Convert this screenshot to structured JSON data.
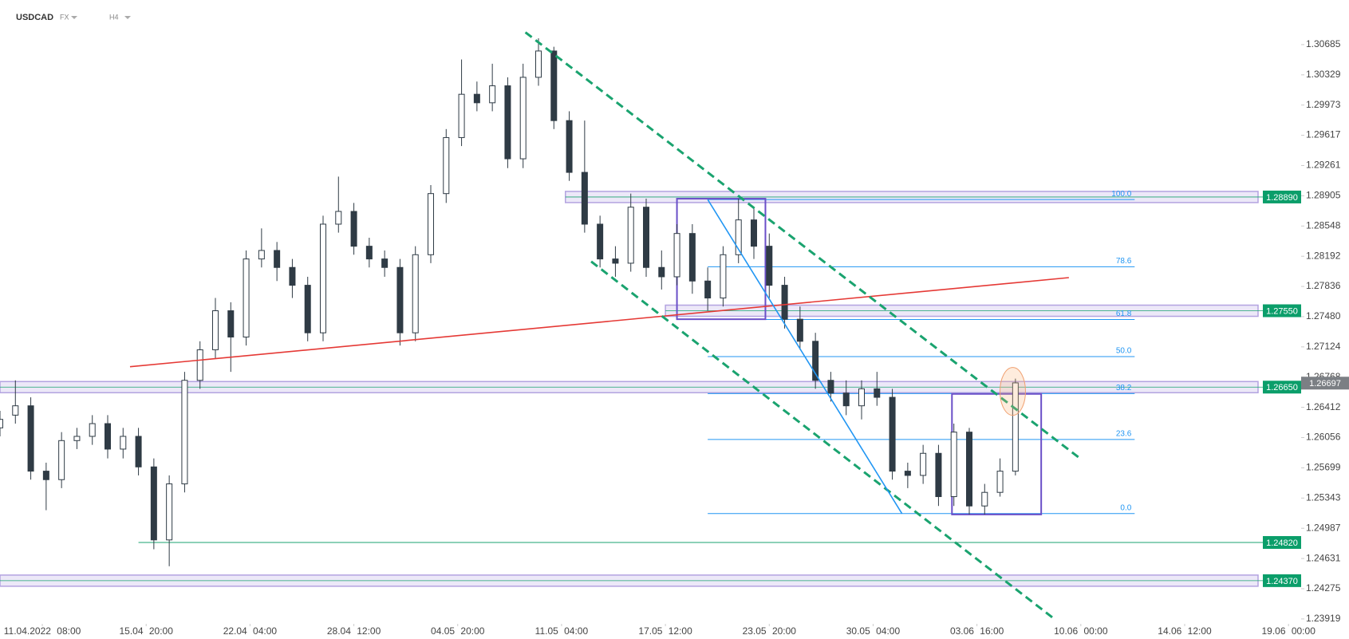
{
  "chart_data": {
    "type": "candlestick",
    "title": "USDCAD",
    "market": "FX",
    "timeframe": "H4",
    "x": [
      0,
      4,
      8,
      12,
      16,
      20,
      24,
      28,
      32,
      36,
      40,
      44,
      48,
      52,
      56,
      60,
      64,
      68,
      72,
      76,
      80,
      84,
      88,
      92,
      96,
      100,
      104,
      108,
      112,
      116,
      120,
      124,
      128,
      132,
      136,
      140,
      144,
      148,
      152,
      156,
      160,
      164,
      168,
      172,
      176,
      180,
      184,
      188,
      192,
      196,
      200,
      204,
      208,
      212,
      216,
      220,
      224,
      228,
      232,
      236,
      240,
      244,
      248,
      252,
      256,
      260,
      264
    ],
    "open": [
      1.2617,
      1.2632,
      1.2643,
      1.2566,
      1.2556,
      1.2602,
      1.2607,
      1.2622,
      1.2592,
      1.2607,
      1.2571,
      1.2485,
      1.2551,
      1.2673,
      1.2709,
      1.2755,
      1.2724,
      1.2816,
      1.2826,
      1.2806,
      1.2785,
      1.2729,
      1.2857,
      1.2872,
      1.2831,
      1.2816,
      1.2806,
      1.2729,
      1.2821,
      1.2893,
      1.2959,
      1.301,
      1.3,
      1.302,
      1.2934,
      1.303,
      1.3061,
      1.2979,
      1.2918,
      1.2857,
      1.2816,
      1.2811,
      1.2877,
      1.2806,
      1.2795,
      1.2846,
      1.279,
      1.277,
      1.2821,
      1.2862,
      1.2831,
      1.2785,
      1.2745,
      1.2719,
      1.2673,
      1.2658,
      1.2643,
      1.2663,
      1.2653,
      1.2566,
      1.2561,
      1.2587,
      1.2536,
      1.2612,
      1.2525,
      1.2541,
      1.2566
    ],
    "high": [
      1.2637,
      1.2673,
      1.2653,
      1.2576,
      1.2612,
      1.2617,
      1.2632,
      1.2632,
      1.2617,
      1.2617,
      1.2581,
      1.2561,
      1.2683,
      1.2719,
      1.277,
      1.2765,
      1.2826,
      1.2852,
      1.2836,
      1.2816,
      1.2795,
      1.2867,
      1.2913,
      1.2882,
      1.2841,
      1.2826,
      1.2816,
      1.2831,
      1.2903,
      1.2969,
      1.3051,
      1.3025,
      1.3046,
      1.303,
      1.3046,
      1.3076,
      1.3066,
      1.299,
      1.2979,
      1.2867,
      1.2831,
      1.2893,
      1.2887,
      1.2826,
      1.2857,
      1.2857,
      1.2806,
      1.2831,
      1.2887,
      1.2877,
      1.2846,
      1.2795,
      1.276,
      1.2729,
      1.2683,
      1.2673,
      1.2673,
      1.2683,
      1.2663,
      1.2576,
      1.2597,
      1.2597,
      1.2622,
      1.2617,
      1.2551,
      1.2581,
      1.2675
    ],
    "low": [
      1.2607,
      1.2622,
      1.2556,
      1.252,
      1.2546,
      1.2592,
      1.2597,
      1.2581,
      1.2581,
      1.2561,
      1.2474,
      1.2454,
      1.2541,
      1.2663,
      1.2699,
      1.2683,
      1.2714,
      1.2806,
      1.279,
      1.277,
      1.2719,
      1.2719,
      1.2847,
      1.2821,
      1.2806,
      1.2795,
      1.2714,
      1.2719,
      1.2811,
      1.2882,
      1.2949,
      1.299,
      1.299,
      1.2923,
      1.2923,
      1.302,
      1.2969,
      1.2908,
      1.2847,
      1.2806,
      1.2795,
      1.2801,
      1.2795,
      1.278,
      1.2785,
      1.2775,
      1.2755,
      1.276,
      1.2811,
      1.2816,
      1.277,
      1.2734,
      1.2709,
      1.2663,
      1.2648,
      1.2632,
      1.2627,
      1.2643,
      1.2556,
      1.2546,
      1.2551,
      1.2525,
      1.2525,
      1.2515,
      1.2515,
      1.2536,
      1.2561
    ],
    "close": [
      1.2627,
      1.2643,
      1.2566,
      1.2556,
      1.2602,
      1.2607,
      1.2622,
      1.2592,
      1.2607,
      1.2571,
      1.2485,
      1.2551,
      1.2673,
      1.2709,
      1.2755,
      1.2724,
      1.2816,
      1.2826,
      1.2806,
      1.2785,
      1.2729,
      1.2857,
      1.2872,
      1.2831,
      1.2816,
      1.2806,
      1.2729,
      1.2821,
      1.2893,
      1.2959,
      1.301,
      1.3,
      1.302,
      1.2934,
      1.303,
      1.3061,
      1.2979,
      1.2918,
      1.2857,
      1.2816,
      1.2811,
      1.2877,
      1.2806,
      1.2795,
      1.2846,
      1.279,
      1.277,
      1.2821,
      1.2862,
      1.2831,
      1.2785,
      1.2745,
      1.2719,
      1.2673,
      1.2658,
      1.2643,
      1.2663,
      1.2653,
      1.2566,
      1.2561,
      1.2587,
      1.2536,
      1.2612,
      1.2525,
      1.2541,
      1.2566,
      1.267
    ],
    "up_color": "#ffffff",
    "down_color": "#2f3b45",
    "xlim": [
      0,
      336
    ],
    "ylim": [
      1.2388,
      1.3091
    ],
    "grid": false,
    "xticks": [
      {
        "value": 11,
        "label": "11.04.2022 08:00"
      },
      {
        "value": 38,
        "label": "15.04 20:00"
      },
      {
        "value": 65,
        "label": "22.04 04:00"
      },
      {
        "value": 92,
        "label": "28.04 12:00"
      },
      {
        "value": 119,
        "label": "04.05 20:00"
      },
      {
        "value": 146,
        "label": "11.05 04:00"
      },
      {
        "value": 173,
        "label": "17.05 12:00"
      },
      {
        "value": 200,
        "label": "23.05 20:00"
      },
      {
        "value": 227,
        "label": "30.05 04:00"
      },
      {
        "value": 254,
        "label": "03.06 16:00"
      },
      {
        "value": 281,
        "label": "10.06 00:00"
      },
      {
        "value": 308,
        "label": "14.06 12:00"
      },
      {
        "value": 335,
        "label": "19.06 00:00"
      }
    ],
    "yticks": [
      1.30685,
      1.30329,
      1.29973,
      1.29617,
      1.29261,
      1.28905,
      1.28548,
      1.28192,
      1.27836,
      {
        "value": 1.2748,
        "label": "1.27480"
      },
      1.27124,
      1.26768,
      1.26412,
      1.26056,
      1.25699,
      1.25343,
      1.24987,
      1.24631,
      1.24275,
      1.23919
    ],
    "last_price": {
      "value": 1.26697,
      "label": "1.26697"
    },
    "zones": [
      {
        "value": 1.2889,
        "label": "1.28890",
        "from": 147
      },
      {
        "value": 1.2755,
        "label": "1.27550",
        "from": 173
      },
      {
        "value": 1.2665,
        "label": "1.26650",
        "from": 0
      },
      {
        "value": 1.2437,
        "label": "1.24370",
        "from": 0
      }
    ],
    "support": {
      "value": 1.2482,
      "label": "1.24820",
      "from": 36
    },
    "fib": {
      "high": 1.2886,
      "low": 1.2516,
      "from": 184,
      "to": 295,
      "levels": [
        {
          "value": 100,
          "label": "100.0"
        },
        78.6,
        61.8,
        {
          "value": 50,
          "label": "50.0"
        },
        38.2,
        23.6,
        {
          "value": 0,
          "label": "0.0"
        }
      ]
    },
    "trendlines": [
      {
        "x": [
          33.8,
          277.9
        ],
        "y": [
          1.2689,
          1.2794
        ],
        "color": "#e53935",
        "dashed": false
      },
      {
        "x": [
          136.6,
          280.8
        ],
        "y": [
          1.3083,
          1.2581
        ],
        "color": "#1aa36f",
        "dashed": true
      },
      {
        "x": [
          153.7,
          274.1
        ],
        "y": [
          1.2813,
          1.2392
        ],
        "color": "#1aa36f",
        "dashed": true
      },
      {
        "x": [
          184,
          234.5
        ],
        "y": [
          1.2886,
          1.2516
        ],
        "color": "#2196f3",
        "dashed": false
      }
    ],
    "boxes": [
      {
        "x": [
          176,
          199
        ],
        "y": [
          1.2887,
          1.2745
        ]
      },
      {
        "x": [
          247.5,
          270.7
        ],
        "y": [
          1.2657,
          1.2515
        ]
      }
    ],
    "highlight": {
      "x": 263.3,
      "y": 1.266
    }
  }
}
